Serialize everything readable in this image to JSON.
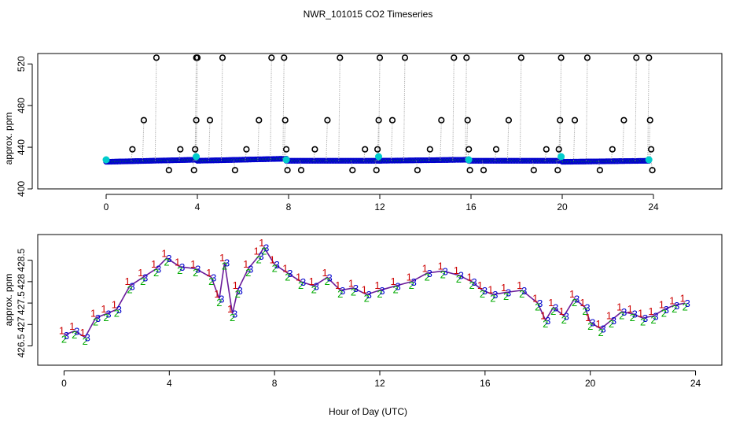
{
  "chart_data": [
    {
      "panel": "top",
      "type": "scatter",
      "title": "NWR_101015  CO2 Timeseries",
      "xlabel": "",
      "ylabel": "approx. ppm",
      "xlim": [
        -3,
        27
      ],
      "ylim": [
        400,
        530
      ],
      "xticks": [
        0,
        4,
        8,
        12,
        16,
        20,
        24
      ],
      "yticks": [
        400,
        440,
        480,
        520
      ],
      "ytick_labels": [
        "400",
        "440",
        "480",
        "520"
      ],
      "baseline_segments": [
        {
          "x_from": 0.0,
          "x_to": 4.0,
          "y_from": 426,
          "y_to": 428
        },
        {
          "x_from": 4.0,
          "x_to": 7.9,
          "y_from": 427,
          "y_to": 429
        },
        {
          "x_from": 7.9,
          "x_to": 12.0,
          "y_from": 427,
          "y_to": 427
        },
        {
          "x_from": 12.0,
          "x_to": 15.9,
          "y_from": 427,
          "y_to": 428
        },
        {
          "x_from": 15.9,
          "x_to": 20.0,
          "y_from": 427,
          "y_to": 427
        },
        {
          "x_from": 20.0,
          "x_to": 23.8,
          "y_from": 426,
          "y_to": 427
        }
      ],
      "calibration_points": [
        {
          "x": 0.0,
          "y": 428
        },
        {
          "x": 3.95,
          "y": 431
        },
        {
          "x": 7.9,
          "y": 428
        },
        {
          "x": 11.95,
          "y": 431
        },
        {
          "x": 15.9,
          "y": 428
        },
        {
          "x": 19.95,
          "y": 431
        },
        {
          "x": 23.8,
          "y": 428
        }
      ],
      "high_outliers": [
        {
          "x": 1.1,
          "y": 438
        },
        {
          "x": 1.6,
          "y": 466
        },
        {
          "x": 2.15,
          "y": 526
        },
        {
          "x": 2.7,
          "y": 418
        },
        {
          "x": 3.2,
          "y": 438
        },
        {
          "x": 3.8,
          "y": 418
        },
        {
          "x": 3.85,
          "y": 438
        },
        {
          "x": 3.9,
          "y": 466
        },
        {
          "x": 3.9,
          "y": 526
        },
        {
          "x": 3.95,
          "y": 526
        },
        {
          "x": 4.5,
          "y": 466
        },
        {
          "x": 5.05,
          "y": 526
        },
        {
          "x": 5.6,
          "y": 418
        },
        {
          "x": 6.1,
          "y": 438
        },
        {
          "x": 6.65,
          "y": 466
        },
        {
          "x": 7.2,
          "y": 526
        },
        {
          "x": 7.75,
          "y": 526
        },
        {
          "x": 7.8,
          "y": 466
        },
        {
          "x": 7.85,
          "y": 438
        },
        {
          "x": 7.9,
          "y": 418
        },
        {
          "x": 8.5,
          "y": 418
        },
        {
          "x": 9.1,
          "y": 438
        },
        {
          "x": 9.65,
          "y": 466
        },
        {
          "x": 10.2,
          "y": 526
        },
        {
          "x": 10.75,
          "y": 418
        },
        {
          "x": 11.3,
          "y": 438
        },
        {
          "x": 11.8,
          "y": 418
        },
        {
          "x": 11.85,
          "y": 438
        },
        {
          "x": 11.9,
          "y": 466
        },
        {
          "x": 11.95,
          "y": 526
        },
        {
          "x": 12.5,
          "y": 466
        },
        {
          "x": 13.05,
          "y": 526
        },
        {
          "x": 13.6,
          "y": 418
        },
        {
          "x": 14.15,
          "y": 438
        },
        {
          "x": 14.65,
          "y": 466
        },
        {
          "x": 15.2,
          "y": 526
        },
        {
          "x": 15.75,
          "y": 526
        },
        {
          "x": 15.8,
          "y": 466
        },
        {
          "x": 15.85,
          "y": 438
        },
        {
          "x": 15.9,
          "y": 418
        },
        {
          "x": 16.5,
          "y": 418
        },
        {
          "x": 17.05,
          "y": 438
        },
        {
          "x": 17.6,
          "y": 466
        },
        {
          "x": 18.15,
          "y": 526
        },
        {
          "x": 18.7,
          "y": 418
        },
        {
          "x": 19.25,
          "y": 438
        },
        {
          "x": 19.75,
          "y": 418
        },
        {
          "x": 19.8,
          "y": 438
        },
        {
          "x": 19.85,
          "y": 466
        },
        {
          "x": 19.9,
          "y": 526
        },
        {
          "x": 20.5,
          "y": 466
        },
        {
          "x": 21.05,
          "y": 526
        },
        {
          "x": 21.6,
          "y": 418
        },
        {
          "x": 22.15,
          "y": 438
        },
        {
          "x": 22.65,
          "y": 466
        },
        {
          "x": 23.2,
          "y": 526
        },
        {
          "x": 23.75,
          "y": 526
        },
        {
          "x": 23.8,
          "y": 466
        },
        {
          "x": 23.85,
          "y": 438
        },
        {
          "x": 23.9,
          "y": 418
        }
      ],
      "series_colors": {
        "outlier": "#000000",
        "points": "#0000cc",
        "green": "#00aa00",
        "calibration": "#00cccc",
        "connector": "#999999"
      }
    },
    {
      "panel": "bottom",
      "type": "scatter",
      "title": "",
      "xlabel": "Hour of Day (UTC)",
      "ylabel": "approx. ppm",
      "xlim": [
        -1,
        25
      ],
      "ylim": [
        426.05,
        429.1
      ],
      "xticks": [
        0,
        4,
        8,
        12,
        16,
        20,
        24
      ],
      "yticks": [
        426.5,
        427.0,
        427.5,
        428.0,
        428.5
      ],
      "ytick_labels": [
        "426.5",
        "427",
        "427.5",
        "428",
        "428.5"
      ],
      "series": [
        {
          "name": "1",
          "color": "#cc0000",
          "offset": 0.12
        },
        {
          "name": "2",
          "color": "#00aa00",
          "offset": -0.08
        },
        {
          "name": "3",
          "color": "#0000cc",
          "offset": 0.0
        }
      ],
      "x": [
        0.0,
        0.4,
        0.8,
        1.2,
        1.6,
        2.0,
        2.5,
        3.0,
        3.5,
        3.9,
        4.4,
        5.0,
        5.6,
        5.9,
        6.1,
        6.4,
        6.6,
        7.0,
        7.4,
        7.6,
        8.0,
        8.5,
        9.0,
        9.5,
        10.0,
        10.5,
        11.0,
        11.5,
        12.0,
        12.6,
        13.2,
        13.8,
        14.4,
        15.0,
        15.5,
        15.9,
        16.3,
        16.8,
        17.4,
        18.0,
        18.3,
        18.6,
        19.0,
        19.4,
        19.8,
        20.0,
        20.4,
        20.8,
        21.2,
        21.6,
        22.0,
        22.4,
        22.8,
        23.2,
        23.6
      ],
      "values": [
        426.75,
        426.85,
        426.7,
        427.15,
        427.25,
        427.35,
        427.9,
        428.1,
        428.3,
        428.55,
        428.35,
        428.3,
        428.1,
        427.6,
        428.45,
        427.25,
        427.8,
        428.3,
        428.6,
        428.8,
        428.4,
        428.2,
        428.0,
        427.9,
        428.1,
        427.8,
        427.85,
        427.7,
        427.8,
        427.9,
        428.0,
        428.2,
        428.25,
        428.15,
        428.0,
        427.8,
        427.7,
        427.75,
        427.8,
        427.5,
        427.1,
        427.4,
        427.2,
        427.6,
        427.4,
        427.05,
        426.9,
        427.1,
        427.3,
        427.25,
        427.15,
        427.2,
        427.35,
        427.45,
        427.5
      ],
      "trace_color": "#6a1b9a"
    }
  ],
  "colors": {
    "background": "#ffffff",
    "axes": "#000000"
  }
}
